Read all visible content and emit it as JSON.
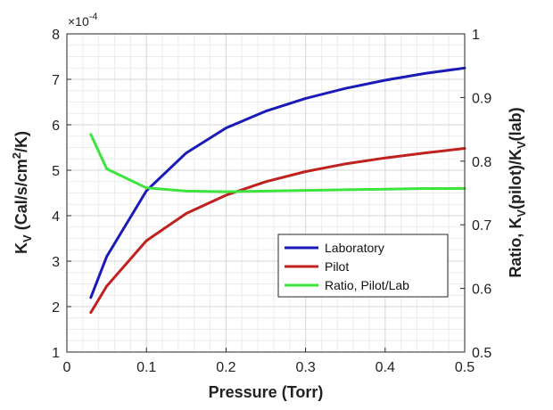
{
  "chart_data": {
    "type": "line",
    "xlabel": "Pressure (Torr)",
    "x": [
      0.03,
      0.05,
      0.1,
      0.15,
      0.2,
      0.25,
      0.3,
      0.35,
      0.4,
      0.45,
      0.5
    ],
    "xlim": [
      0,
      0.5
    ],
    "x_ticks": [
      "0",
      "0.1",
      "0.2",
      "0.3",
      "0.4",
      "0.5"
    ],
    "y_left": {
      "label_main": "K",
      "label_sub": "V",
      "label_rest_1": " (Cal/s/cm",
      "label_sup": "2",
      "label_rest_2": "/K)",
      "multiplier": "×10",
      "multiplier_exp": "-4",
      "ylim": [
        1,
        8
      ],
      "ticks": [
        "1",
        "2",
        "3",
        "4",
        "5",
        "6",
        "7",
        "8"
      ]
    },
    "y_right": {
      "label_p1": "Ratio, K",
      "label_sub1": "V",
      "label_p2": "(pilot)/K",
      "label_sub2": "V",
      "label_p3": "(lab)",
      "ylim": [
        0.5,
        1
      ],
      "ticks": [
        "0.5",
        "0.6",
        "0.7",
        "0.8",
        "0.9",
        "1"
      ]
    },
    "grid": true,
    "grid_minor": true,
    "legend_position": "lower-right",
    "series": [
      {
        "name": "Laboratory",
        "axis": "left",
        "color": "#1a1ab8",
        "values": [
          2.2,
          3.1,
          4.55,
          5.38,
          5.93,
          6.3,
          6.58,
          6.8,
          6.98,
          7.13,
          7.25
        ]
      },
      {
        "name": "Pilot",
        "axis": "left",
        "color": "#c0201e",
        "values": [
          1.87,
          2.45,
          3.45,
          4.05,
          4.45,
          4.75,
          4.97,
          5.14,
          5.27,
          5.38,
          5.48
        ]
      },
      {
        "name": "Ratio, Pilot/Lab",
        "axis": "right",
        "color": "#3ce43c",
        "values": [
          0.842,
          0.788,
          0.758,
          0.753,
          0.752,
          0.753,
          0.754,
          0.755,
          0.756,
          0.757,
          0.757
        ]
      }
    ]
  }
}
